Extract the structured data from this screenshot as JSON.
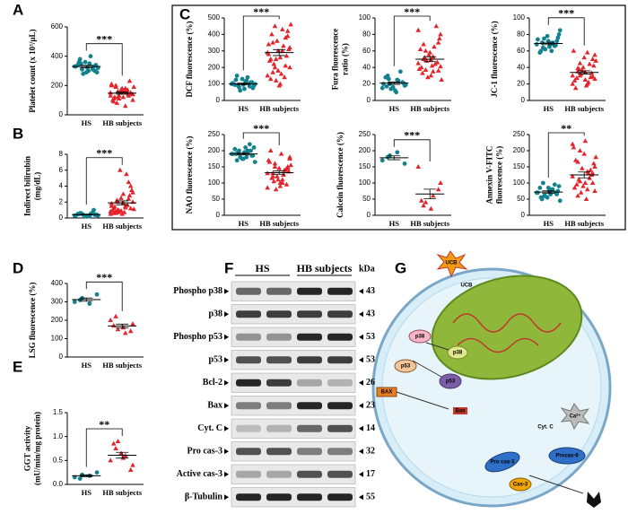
{
  "panel_labels": [
    "A",
    "B",
    "C",
    "D",
    "E",
    "F",
    "G"
  ],
  "chart_data": [
    {
      "type": "strip",
      "y_label": [
        "Platelet count (x 10³/µL)"
      ],
      "ylim": [
        0,
        600
      ],
      "yticks": [
        0,
        200,
        400,
        600
      ],
      "significance": "***",
      "series": [
        {
          "name": "HS",
          "color": "#13828f",
          "marker": "circle",
          "values": [
            330,
            310,
            350,
            290,
            380,
            320,
            300,
            340,
            360,
            310,
            330,
            280,
            400,
            320,
            350,
            300,
            340,
            360,
            290,
            330
          ],
          "mean": 330,
          "sem": 8
        },
        {
          "name": "HB subjects",
          "color": "#e3242b",
          "marker": "triangle",
          "values": [
            150,
            120,
            180,
            100,
            200,
            160,
            140,
            90,
            170,
            130,
            210,
            110,
            150,
            190,
            80,
            160,
            140,
            120,
            180,
            230,
            100,
            150,
            170,
            130,
            160,
            60,
            140,
            190,
            120,
            150,
            110,
            170,
            140,
            200,
            130
          ],
          "mean": 148,
          "sem": 7
        }
      ]
    },
    {
      "type": "strip",
      "y_label": [
        "Indirect bilirubin",
        "(mg/dL)"
      ],
      "ylim": [
        0,
        8
      ],
      "yticks": [
        0,
        2,
        4,
        6,
        8
      ],
      "significance": "***",
      "series": [
        {
          "name": "HS",
          "color": "#13828f",
          "marker": "circle",
          "values": [
            0.3,
            0.5,
            0.2,
            0.4,
            0.6,
            0.3,
            0.4,
            0.5,
            0.2,
            0.7,
            0.3,
            0.4,
            0.5,
            0.3,
            0.6,
            0.2,
            0.4,
            0.5,
            0.3,
            1.0
          ],
          "mean": 0.42,
          "sem": 0.04
        },
        {
          "name": "HB subjects",
          "color": "#e3242b",
          "marker": "triangle",
          "values": [
            0.5,
            1.0,
            1.5,
            2.0,
            0.8,
            3.0,
            1.2,
            0.6,
            2.5,
            4.5,
            1.8,
            0.9,
            5.5,
            1.1,
            2.2,
            0.7,
            3.5,
            1.4,
            0.5,
            2.8,
            1.0,
            6.0,
            1.6,
            0.8,
            2.0,
            1.3,
            3.2,
            0.6,
            1.9,
            4.0,
            1.2,
            0.9,
            2.4,
            1.5,
            0.7
          ],
          "mean": 1.9,
          "sem": 0.25
        }
      ]
    },
    {
      "type": "strip",
      "y_label": [
        "DCF fluorescence (%)"
      ],
      "ylim": [
        0,
        500
      ],
      "yticks": [
        0,
        100,
        200,
        300,
        400,
        500
      ],
      "significance": "***",
      "series": [
        {
          "name": "HS",
          "color": "#13828f",
          "marker": "circle",
          "values": [
            100,
            80,
            120,
            90,
            150,
            70,
            110,
            95,
            130,
            85,
            105,
            60,
            140,
            100,
            90,
            115,
            75,
            125,
            95,
            110
          ],
          "mean": 100,
          "sem": 5
        },
        {
          "name": "HB subjects",
          "color": "#e3242b",
          "marker": "triangle",
          "values": [
            150,
            450,
            300,
            200,
            350,
            100,
            420,
            250,
            180,
            380,
            280,
            120,
            330,
            460,
            220,
            160,
            310,
            400,
            90,
            270,
            240,
            360,
            140,
            290,
            200,
            430,
            320,
            170,
            260,
            390,
            130,
            300,
            210,
            340,
            250
          ],
          "mean": 290,
          "sem": 18
        }
      ]
    },
    {
      "type": "strip",
      "y_label": [
        "Fura fluorescence",
        "ratio (%)"
      ],
      "ylim": [
        0,
        100
      ],
      "yticks": [
        0,
        20,
        40,
        60,
        80,
        100
      ],
      "significance": "***",
      "series": [
        {
          "name": "HS",
          "color": "#13828f",
          "marker": "circle",
          "values": [
            15,
            20,
            25,
            18,
            30,
            12,
            22,
            28,
            16,
            35,
            20,
            14,
            24,
            19,
            26,
            10,
            21,
            17
          ],
          "mean": 21,
          "sem": 1.5
        },
        {
          "name": "HB subjects",
          "color": "#e3242b",
          "marker": "triangle",
          "values": [
            45,
            60,
            35,
            80,
            50,
            30,
            70,
            40,
            55,
            90,
            38,
            48,
            65,
            25,
            52,
            42,
            75,
            33,
            58,
            46,
            62,
            28,
            44,
            85,
            37,
            53,
            41,
            68,
            49,
            36
          ],
          "mean": 50,
          "sem": 3
        }
      ]
    },
    {
      "type": "strip",
      "y_label": [
        "JC-1 fluorescence (%)"
      ],
      "ylim": [
        0,
        100
      ],
      "yticks": [
        0,
        20,
        40,
        60,
        80,
        100
      ],
      "significance": "***",
      "series": [
        {
          "name": "HS",
          "color": "#13828f",
          "marker": "circle",
          "values": [
            68,
            75,
            60,
            80,
            70,
            65,
            72,
            58,
            78,
            66,
            74,
            62,
            70,
            85,
            64,
            68,
            76,
            60,
            72,
            67
          ],
          "mean": 69,
          "sem": 1.5
        },
        {
          "name": "HB subjects",
          "color": "#e3242b",
          "marker": "triangle",
          "values": [
            30,
            45,
            20,
            55,
            35,
            25,
            50,
            15,
            40,
            28,
            60,
            32,
            22,
            48,
            38,
            18,
            42,
            27,
            52,
            33,
            24,
            36,
            44,
            20,
            30,
            58,
            26,
            39,
            34,
            29
          ],
          "mean": 34,
          "sem": 2
        }
      ]
    },
    {
      "type": "strip",
      "y_label": [
        "NAO fluorescence (%)"
      ],
      "ylim": [
        0,
        250
      ],
      "yticks": [
        0,
        50,
        100,
        150,
        200,
        250
      ],
      "significance": "***",
      "series": [
        {
          "name": "HS",
          "color": "#13828f",
          "marker": "circle",
          "values": [
            190,
            200,
            180,
            210,
            170,
            195,
            185,
            205,
            175,
            220,
            190,
            180,
            200,
            165,
            195,
            210,
            185,
            190,
            175,
            200
          ],
          "mean": 190,
          "sem": 3
        },
        {
          "name": "HB subjects",
          "color": "#e3242b",
          "marker": "triangle",
          "values": [
            130,
            160,
            100,
            180,
            120,
            90,
            150,
            200,
            110,
            140,
            170,
            80,
            125,
            155,
            105,
            190,
            135,
            115,
            145,
            95,
            165,
            120,
            140,
            85,
            150,
            110,
            175,
            130,
            100,
            145
          ],
          "mean": 132,
          "sem": 5
        }
      ]
    },
    {
      "type": "strip",
      "y_label": [
        "Calcein fluorescence (%)"
      ],
      "ylim": [
        0,
        250
      ],
      "yticks": [
        0,
        50,
        100,
        150,
        200,
        250
      ],
      "significance": "***",
      "series": [
        {
          "name": "HS",
          "color": "#13828f",
          "marker": "circle",
          "values": [
            170,
            185,
            195,
            160,
            180
          ],
          "mean": 178,
          "sem": 6
        },
        {
          "name": "HB subjects",
          "color": "#e3242b",
          "marker": "triangle",
          "values": [
            150,
            40,
            60,
            100,
            30,
            20,
            80,
            45
          ],
          "mean": 66,
          "sem": 15
        }
      ]
    },
    {
      "type": "strip",
      "y_label": [
        "Annexin V-FITC",
        "fluorescence (%)"
      ],
      "ylim": [
        0,
        250
      ],
      "yticks": [
        0,
        50,
        100,
        150,
        200,
        250
      ],
      "significance": "**",
      "series": [
        {
          "name": "HS",
          "color": "#13828f",
          "marker": "circle",
          "values": [
            70,
            60,
            80,
            90,
            50,
            75,
            65,
            85,
            55,
            95,
            70,
            60,
            80,
            45,
            100,
            65,
            75,
            55,
            85,
            70
          ],
          "mean": 72,
          "sem": 3.5
        },
        {
          "name": "HB subjects",
          "color": "#e3242b",
          "marker": "triangle",
          "values": [
            120,
            200,
            80,
            150,
            60,
            230,
            100,
            170,
            90,
            140,
            210,
            70,
            130,
            180,
            110,
            50,
            160,
            95,
            190,
            125,
            85,
            145,
            115,
            220,
            105,
            135,
            75,
            165,
            100,
            130
          ],
          "mean": 125,
          "sem": 9
        }
      ]
    },
    {
      "type": "strip",
      "y_label": [
        "LSG fluorescence (%)"
      ],
      "ylim": [
        0,
        400
      ],
      "yticks": [
        0,
        100,
        200,
        300,
        400
      ],
      "significance": "***",
      "series": [
        {
          "name": "HS",
          "color": "#13828f",
          "marker": "circle",
          "values": [
            300,
            320,
            290,
            340,
            310
          ],
          "mean": 312,
          "sem": 9
        },
        {
          "name": "HB subjects",
          "color": "#e3242b",
          "marker": "triangle",
          "values": [
            200,
            150,
            130,
            180,
            220,
            160,
            140,
            170
          ],
          "mean": 169,
          "sem": 10
        }
      ]
    },
    {
      "type": "strip",
      "y_label": [
        "GGT activity",
        "(mU/min/mg protein)"
      ],
      "ylim": [
        0,
        1.5
      ],
      "yticks": [
        {
          "value": 0,
          "label": "0.0"
        },
        0.5,
        {
          "value": 1,
          "label": "1.0"
        },
        {
          "value": 1.5,
          "label": "1.5"
        }
      ],
      "significance": "**",
      "series": [
        {
          "name": "HS",
          "color": "#13828f",
          "marker": "circle",
          "values": [
            0.15,
            0.2,
            0.18,
            0.25,
            0.12
          ],
          "mean": 0.18,
          "sem": 0.02
        },
        {
          "name": "HB subjects",
          "color": "#e3242b",
          "marker": "triangle",
          "values": [
            0.5,
            0.9,
            0.6,
            0.4,
            0.75,
            0.55,
            0.3,
            0.85,
            0.65
          ],
          "mean": 0.61,
          "sem": 0.06
        }
      ]
    }
  ],
  "blot": {
    "groups": [
      "HS",
      "HB subjects"
    ],
    "unit": "kDa",
    "rows": [
      {
        "label": "Phospho p38",
        "kda": 43
      },
      {
        "label": "p38",
        "kda": 43
      },
      {
        "label": "Phospho p53",
        "kda": 53
      },
      {
        "label": "p53",
        "kda": 53
      },
      {
        "label": "Bcl-2",
        "kda": 26
      },
      {
        "label": "Bax",
        "kda": 23
      },
      {
        "label": "Cyt. C",
        "kda": 14
      },
      {
        "label": "Pro cas-3",
        "kda": 32
      },
      {
        "label": "Active cas-3",
        "kda": 17
      },
      {
        "label": "β-Tubulin",
        "kda": 55
      }
    ]
  },
  "diagram": {
    "labels": [
      "UCB",
      "UCB",
      "p38",
      "p38",
      "p53",
      "p53",
      "BAX",
      "Bax",
      "Cyt. C",
      "Ca²⁺",
      "Pro cas-3",
      "Procas-9",
      "Cas-3"
    ]
  }
}
